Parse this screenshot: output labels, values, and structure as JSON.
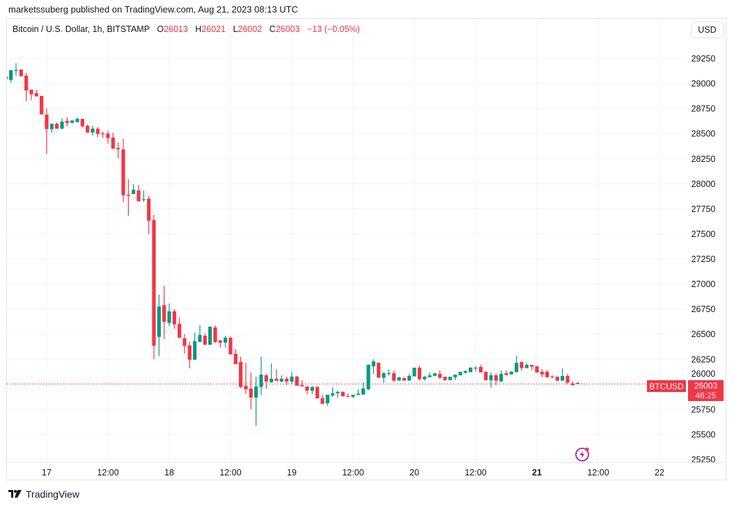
{
  "publisher_line": "marketssuberg published on TradingView.com, Aug 21, 2023 08:13 UTC",
  "legend": {
    "symbol": "Bitcoin / U.S. Dollar, 1h, BITSTAMP",
    "o_label": "O",
    "o": "26013",
    "h_label": "H",
    "h": "26021",
    "l_label": "L",
    "l": "26002",
    "c_label": "C",
    "c": "26003",
    "change": "−13 (−0.05%)"
  },
  "currency_button": "USD",
  "last_price": {
    "symbol": "BTCUSD",
    "price": "26003",
    "countdown": "46:25"
  },
  "logo_text": "TradingView",
  "icons": {
    "alert": "lightning-bolt-icon",
    "logo": "tradingview-logo-icon"
  },
  "colors": {
    "up": "#089981",
    "down": "#f23645",
    "grid": "#f0f3fa",
    "accent": "#9c27b0"
  },
  "chart_data": {
    "type": "candlestick",
    "title": "",
    "interval": "1h",
    "ylim": [
      25250,
      29250
    ],
    "y_ticks": [
      "25250",
      "25500",
      "25750",
      "26000",
      "26250",
      "26500",
      "26750",
      "27000",
      "27250",
      "27500",
      "27750",
      "28000",
      "28250",
      "28500",
      "28750",
      "29000",
      "29250"
    ],
    "x_ticks": [
      {
        "label": "17",
        "t": "08-17 00:00"
      },
      {
        "label": "12:00",
        "t": "08-17 12:00"
      },
      {
        "label": "18",
        "t": "08-18 00:00"
      },
      {
        "label": "12:00",
        "t": "08-18 12:00"
      },
      {
        "label": "19",
        "t": "08-19 00:00"
      },
      {
        "label": "12:00",
        "t": "08-19 12:00"
      },
      {
        "label": "20",
        "t": "08-20 00:00"
      },
      {
        "label": "12:00",
        "t": "08-20 12:00"
      },
      {
        "label": "21",
        "t": "08-21 00:00",
        "bold": true
      },
      {
        "label": "12:00",
        "t": "08-21 12:00"
      },
      {
        "label": "22",
        "t": "08-22 00:00"
      }
    ],
    "grid": true,
    "candles_fields": [
      "time",
      "open",
      "high",
      "low",
      "close"
    ],
    "candles": [
      [
        "08-16 16:00",
        29070,
        29070,
        29042,
        29042
      ],
      [
        "08-16 17:00",
        29035,
        29132,
        29007,
        29132
      ],
      [
        "08-16 18:00",
        29125,
        29201,
        29077,
        29135
      ],
      [
        "08-16 19:00",
        29139,
        29139,
        29072,
        29072
      ],
      [
        "08-16 20:00",
        29077,
        29104,
        28822,
        28931
      ],
      [
        "08-16 21:00",
        28938,
        28938,
        28834,
        28892
      ],
      [
        "08-16 22:00",
        28903,
        28938,
        28871,
        28871
      ],
      [
        "08-16 23:00",
        28876,
        28876,
        28691,
        28691
      ],
      [
        "08-17 00:00",
        28689,
        28751,
        28296,
        28545
      ],
      [
        "08-17 01:00",
        28545,
        28598,
        28510,
        28598
      ],
      [
        "08-17 02:00",
        28598,
        28612,
        28548,
        28548
      ],
      [
        "08-17 03:00",
        28550,
        28654,
        28543,
        28619
      ],
      [
        "08-17 04:00",
        28626,
        28661,
        28573,
        28607
      ],
      [
        "08-17 05:00",
        28607,
        28631,
        28600,
        28631
      ],
      [
        "08-17 06:00",
        28614,
        28659,
        28612,
        28647
      ],
      [
        "08-17 07:00",
        28647,
        28647,
        28559,
        28573
      ],
      [
        "08-17 08:00",
        28578,
        28591,
        28510,
        28510
      ],
      [
        "08-17 09:00",
        28510,
        28580,
        28480,
        28550
      ],
      [
        "08-17 10:00",
        28548,
        28564,
        28462,
        28497
      ],
      [
        "08-17 11:00",
        28500,
        28522,
        28455,
        28495
      ],
      [
        "08-17 12:00",
        28500,
        28529,
        28400,
        28455
      ],
      [
        "08-17 13:00",
        28460,
        28508,
        28344,
        28351
      ],
      [
        "08-17 14:00",
        28356,
        28411,
        28254,
        28344
      ],
      [
        "08-17 15:00",
        28342,
        28446,
        27817,
        27886
      ],
      [
        "08-17 16:00",
        27890,
        28044,
        27679,
        27880
      ],
      [
        "08-17 17:00",
        27898,
        27995,
        27898,
        27940
      ],
      [
        "08-17 18:00",
        27933,
        27988,
        27824,
        27824
      ],
      [
        "08-17 19:00",
        27838,
        27933,
        27817,
        27845
      ],
      [
        "08-17 20:00",
        27850,
        27877,
        27498,
        27630
      ],
      [
        "08-17 21:00",
        27637,
        27690,
        26248,
        26383
      ],
      [
        "08-17 22:00",
        26472,
        26893,
        26283,
        26775
      ],
      [
        "08-17 23:00",
        26789,
        26983,
        26450,
        26623
      ],
      [
        "08-18 00:00",
        26611,
        26805,
        26581,
        26727
      ],
      [
        "08-18 01:00",
        26727,
        26748,
        26553,
        26597
      ],
      [
        "08-18 02:00",
        26602,
        26664,
        26456,
        26465
      ],
      [
        "08-18 03:00",
        26458,
        26498,
        26304,
        26382
      ],
      [
        "08-18 04:00",
        26387,
        26422,
        26158,
        26244
      ],
      [
        "08-18 05:00",
        26244,
        26512,
        26244,
        26429
      ],
      [
        "08-18 06:00",
        26422,
        26588,
        26422,
        26491
      ],
      [
        "08-18 07:00",
        26484,
        26505,
        26394,
        26394
      ],
      [
        "08-18 08:00",
        26394,
        26574,
        26394,
        26574
      ],
      [
        "08-18 09:00",
        26567,
        26588,
        26408,
        26422
      ],
      [
        "08-18 10:00",
        26436,
        26443,
        26366,
        26415
      ],
      [
        "08-18 11:00",
        26415,
        26484,
        26366,
        26464
      ],
      [
        "08-18 12:00",
        26463,
        26477,
        26297,
        26297
      ],
      [
        "08-18 13:00",
        26304,
        26352,
        26200,
        26200
      ],
      [
        "08-18 14:00",
        26222,
        26276,
        25957,
        25973
      ],
      [
        "08-18 15:00",
        25985,
        26214,
        25904,
        25950
      ],
      [
        "08-18 16:00",
        25957,
        26117,
        25751,
        25867
      ],
      [
        "08-18 17:00",
        25867,
        26076,
        25585,
        25978
      ],
      [
        "08-18 18:00",
        25973,
        26276,
        25890,
        26096
      ],
      [
        "08-18 19:00",
        26089,
        26103,
        25957,
        26027
      ],
      [
        "08-18 20:00",
        26020,
        26207,
        26013,
        26055
      ],
      [
        "08-18 21:00",
        26055,
        26151,
        26034,
        26034
      ],
      [
        "08-18 22:00",
        26027,
        26089,
        26020,
        26055
      ],
      [
        "08-18 23:00",
        26055,
        26076,
        25992,
        26027
      ],
      [
        "08-19 00:00",
        26027,
        26124,
        25999,
        26076
      ],
      [
        "08-19 01:00",
        26076,
        26082,
        25985,
        25985
      ],
      [
        "08-19 02:00",
        25992,
        26041,
        25978,
        25978
      ],
      [
        "08-19 03:00",
        25978,
        25978,
        25902,
        25936
      ],
      [
        "08-19 04:00",
        25936,
        25985,
        25902,
        25971
      ],
      [
        "08-19 05:00",
        25971,
        25978,
        25853,
        25860
      ],
      [
        "08-19 06:00",
        25860,
        25895,
        25805,
        25805
      ],
      [
        "08-19 07:00",
        25812,
        25895,
        25784,
        25895
      ],
      [
        "08-19 08:00",
        25888,
        25971,
        25874,
        25909
      ],
      [
        "08-19 09:00",
        25909,
        25936,
        25867,
        25923
      ],
      [
        "08-19 10:00",
        25923,
        25930,
        25874,
        25881
      ],
      [
        "08-19 11:00",
        25881,
        25909,
        25875,
        25875
      ],
      [
        "08-19 12:00",
        25875,
        25895,
        25860,
        25895
      ],
      [
        "08-19 13:00",
        25893,
        25950,
        25893,
        25906
      ],
      [
        "08-19 14:00",
        25897,
        26020,
        25897,
        25957
      ],
      [
        "08-19 15:00",
        25950,
        26200,
        25939,
        26193
      ],
      [
        "08-19 16:00",
        26179,
        26248,
        26103,
        26227
      ],
      [
        "08-19 17:00",
        26214,
        26214,
        26061,
        26066
      ],
      [
        "08-19 18:00",
        26064,
        26122,
        26014,
        26110
      ],
      [
        "08-19 19:00",
        26103,
        26145,
        26084,
        26110
      ],
      [
        "08-19 20:00",
        26110,
        26138,
        26022,
        26036
      ],
      [
        "08-19 21:00",
        26036,
        26075,
        26036,
        26068
      ],
      [
        "08-19 22:00",
        26061,
        26068,
        26036,
        26036
      ],
      [
        "08-19 23:00",
        26036,
        26103,
        26036,
        26082
      ],
      [
        "08-20 00:00",
        26078,
        26165,
        26078,
        26165
      ],
      [
        "08-20 01:00",
        26165,
        26186,
        26036,
        26050
      ],
      [
        "08-20 02:00",
        26050,
        26082,
        26036,
        26075
      ],
      [
        "08-20 03:00",
        26070,
        26117,
        26070,
        26089
      ],
      [
        "08-20 04:00",
        26084,
        26110,
        26084,
        26110
      ],
      [
        "08-20 05:00",
        26103,
        26138,
        26052,
        26064
      ],
      [
        "08-20 06:00",
        26075,
        26075,
        26034,
        26041
      ],
      [
        "08-20 07:00",
        26041,
        26075,
        26041,
        26075
      ],
      [
        "08-20 08:00",
        26070,
        26096,
        26044,
        26096
      ],
      [
        "08-20 09:00",
        26089,
        26124,
        26089,
        26124
      ],
      [
        "08-20 10:00",
        26115,
        26138,
        26106,
        26131
      ],
      [
        "08-20 11:00",
        26120,
        26172,
        26120,
        26165
      ],
      [
        "08-20 12:00",
        26160,
        26179,
        26126,
        26165
      ],
      [
        "08-20 13:00",
        26172,
        26193,
        26117,
        26117
      ],
      [
        "08-20 14:00",
        26124,
        26131,
        26040,
        26040
      ],
      [
        "08-20 15:00",
        26040,
        26117,
        25967,
        26089
      ],
      [
        "08-20 16:00",
        26089,
        26110,
        25992,
        26036
      ],
      [
        "08-20 17:00",
        26028,
        26138,
        26022,
        26103
      ],
      [
        "08-20 18:00",
        26110,
        26138,
        26091,
        26091
      ],
      [
        "08-20 19:00",
        26098,
        26131,
        26098,
        26124
      ],
      [
        "08-20 20:00",
        26120,
        26283,
        26120,
        26214
      ],
      [
        "08-20 21:00",
        26221,
        26228,
        26133,
        26161
      ],
      [
        "08-20 22:00",
        26161,
        26207,
        26161,
        26193
      ],
      [
        "08-20 23:00",
        26193,
        26193,
        26140,
        26175
      ],
      [
        "08-21 00:00",
        26179,
        26179,
        26117,
        26117
      ],
      [
        "08-21 01:00",
        26124,
        26151,
        26070,
        26098
      ],
      [
        "08-21 02:00",
        26124,
        26145,
        26064,
        26070
      ],
      [
        "08-21 03:00",
        26078,
        26089,
        26056,
        26072
      ],
      [
        "08-21 04:00",
        26075,
        26075,
        26028,
        26036
      ],
      [
        "08-21 05:00",
        26036,
        26158,
        26036,
        26082
      ],
      [
        "08-21 06:00",
        26082,
        26103,
        26008,
        26015
      ],
      [
        "08-21 07:00",
        26008,
        26028,
        25985,
        25992
      ],
      [
        "08-21 08:00",
        26013,
        26021,
        26002,
        26003
      ]
    ],
    "last_price_line": 26003
  }
}
